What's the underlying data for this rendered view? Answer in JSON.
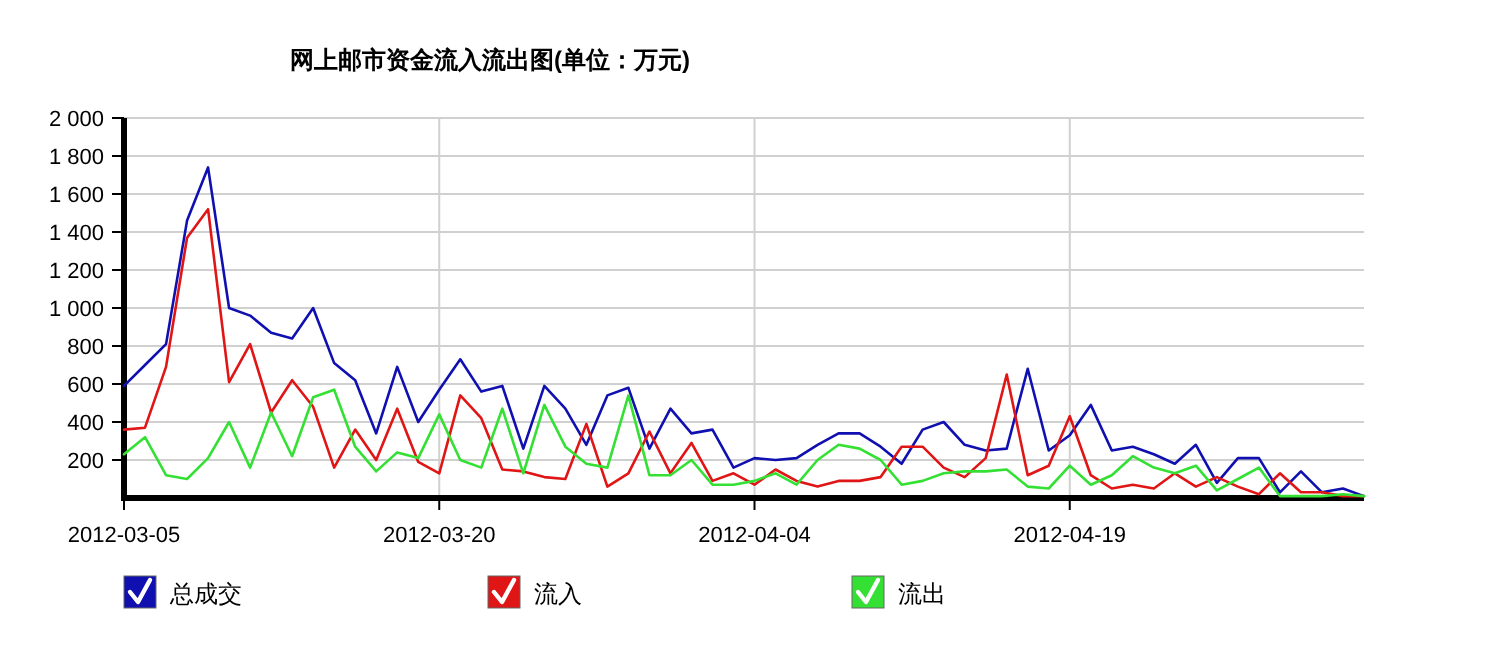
{
  "chart_data": {
    "type": "line",
    "title": "网上邮市资金流入流出图(单位：万元)",
    "x": [
      "2012-03-05",
      "2012-03-06",
      "2012-03-07",
      "2012-03-08",
      "2012-03-09",
      "2012-03-10",
      "2012-03-11",
      "2012-03-12",
      "2012-03-13",
      "2012-03-14",
      "2012-03-15",
      "2012-03-16",
      "2012-03-17",
      "2012-03-18",
      "2012-03-19",
      "2012-03-20",
      "2012-03-21",
      "2012-03-22",
      "2012-03-23",
      "2012-03-24",
      "2012-03-25",
      "2012-03-26",
      "2012-03-27",
      "2012-03-28",
      "2012-03-29",
      "2012-03-30",
      "2012-03-31",
      "2012-04-01",
      "2012-04-02",
      "2012-04-03",
      "2012-04-04",
      "2012-04-05",
      "2012-04-06",
      "2012-04-07",
      "2012-04-08",
      "2012-04-09",
      "2012-04-10",
      "2012-04-11",
      "2012-04-12",
      "2012-04-13",
      "2012-04-14",
      "2012-04-15",
      "2012-04-16",
      "2012-04-17",
      "2012-04-18",
      "2012-04-19",
      "2012-04-20",
      "2012-04-21",
      "2012-04-22",
      "2012-04-23",
      "2012-04-24",
      "2012-04-25",
      "2012-04-26",
      "2012-04-27",
      "2012-04-28",
      "2012-04-29",
      "2012-04-30",
      "2012-05-01",
      "2012-05-02",
      "2012-05-03"
    ],
    "series": [
      {
        "name": "总成交",
        "color": "#1010b0",
        "values": [
          590,
          700,
          810,
          1460,
          1740,
          1000,
          960,
          870,
          840,
          1000,
          710,
          620,
          340,
          690,
          400,
          570,
          730,
          560,
          590,
          260,
          590,
          470,
          280,
          540,
          580,
          260,
          470,
          340,
          360,
          160,
          210,
          200,
          210,
          280,
          340,
          340,
          270,
          180,
          360,
          400,
          280,
          250,
          260,
          680,
          250,
          330,
          490,
          250,
          270,
          230,
          180,
          280,
          80,
          210,
          210,
          30,
          140,
          30,
          50,
          10
        ]
      },
      {
        "name": "流入",
        "color": "#e01515",
        "values": [
          360,
          370,
          690,
          1370,
          1520,
          610,
          810,
          450,
          620,
          480,
          160,
          360,
          200,
          470,
          190,
          130,
          540,
          420,
          150,
          140,
          110,
          100,
          390,
          60,
          130,
          350,
          130,
          290,
          90,
          130,
          70,
          150,
          90,
          60,
          90,
          90,
          110,
          270,
          270,
          160,
          110,
          210,
          650,
          120,
          170,
          430,
          120,
          50,
          70,
          50,
          130,
          60,
          110,
          60,
          20,
          130,
          30,
          30,
          10,
          10
        ]
      },
      {
        "name": "流出",
        "color": "#33e033",
        "values": [
          230,
          320,
          120,
          100,
          210,
          400,
          160,
          450,
          220,
          530,
          570,
          270,
          140,
          240,
          210,
          440,
          200,
          160,
          470,
          130,
          490,
          270,
          180,
          160,
          540,
          120,
          120,
          200,
          70,
          70,
          90,
          130,
          70,
          200,
          280,
          260,
          200,
          70,
          90,
          130,
          140,
          140,
          150,
          60,
          50,
          170,
          70,
          120,
          220,
          160,
          130,
          170,
          40,
          100,
          160,
          10,
          10,
          10,
          20,
          10
        ]
      }
    ],
    "xlim": [
      "2012-03-05",
      "2012-05-03"
    ],
    "xticks": [
      {
        "value": "2012-03-05",
        "label": "2012-03-05"
      },
      {
        "value": "2012-03-20",
        "label": "2012-03-20"
      },
      {
        "value": "2012-04-04",
        "label": "2012-04-04"
      },
      {
        "value": "2012-04-19",
        "label": "2012-04-19"
      }
    ],
    "ylim": [
      0,
      2000
    ],
    "yticks": [
      {
        "value": 200,
        "label": "200"
      },
      {
        "value": 400,
        "label": "400"
      },
      {
        "value": 600,
        "label": "600"
      },
      {
        "value": 800,
        "label": "800"
      },
      {
        "value": 1000,
        "label": "1 000"
      },
      {
        "value": 1200,
        "label": "1 200"
      },
      {
        "value": 1400,
        "label": "1 400"
      },
      {
        "value": 1600,
        "label": "1 600"
      },
      {
        "value": 1800,
        "label": "1 800"
      },
      {
        "value": 2000,
        "label": "2 000"
      }
    ],
    "grid": true,
    "legend": "bottom",
    "marker": "none",
    "line_style": "solid"
  }
}
